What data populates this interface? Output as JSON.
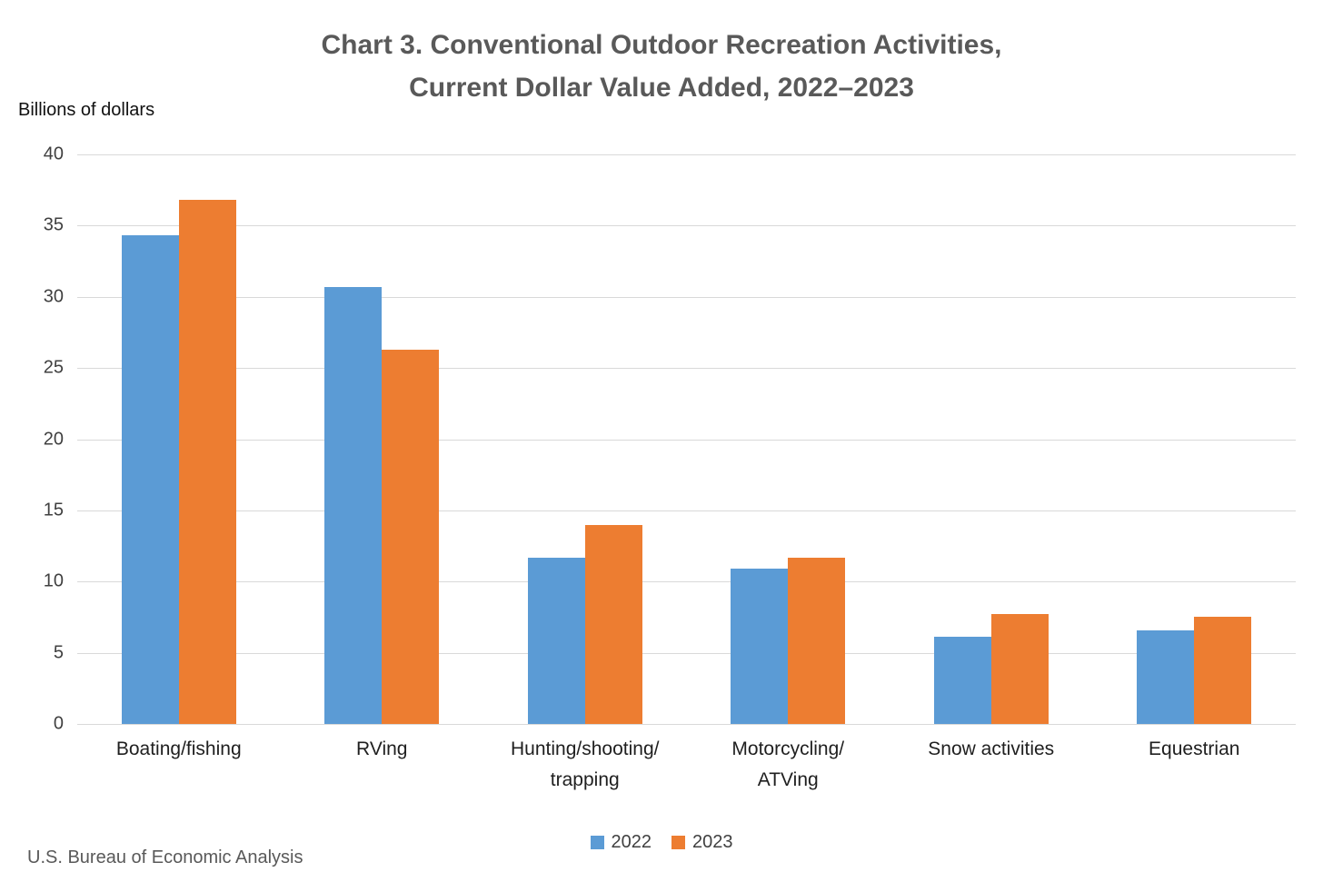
{
  "chart_data": {
    "type": "bar",
    "title_line1": "Chart 3. Conventional Outdoor Recreation Activities,",
    "title_line2": "Current Dollar Value Added, 2022–2023",
    "ylabel": "Billions of dollars",
    "ylim": [
      0,
      40
    ],
    "ytick_step": 5,
    "grid": "horizontal",
    "legend_position": "bottom",
    "categories": [
      "Boating/fishing",
      "RVing",
      "Hunting/shooting/trapping",
      "Motorcycling/ATVing",
      "Snow activities",
      "Equestrian"
    ],
    "category_label_lines": [
      [
        "Boating/fishing"
      ],
      [
        "RVing"
      ],
      [
        "Hunting/shooting/",
        "trapping"
      ],
      [
        "Motorcycling/",
        "ATVing"
      ],
      [
        "Snow activities"
      ],
      [
        "Equestrian"
      ]
    ],
    "series": [
      {
        "name": "2022",
        "color": "#5B9BD5",
        "values": [
          34.3,
          30.7,
          11.7,
          10.9,
          6.1,
          6.6
        ]
      },
      {
        "name": "2023",
        "color": "#ED7D31",
        "values": [
          36.8,
          26.3,
          14.0,
          11.7,
          7.7,
          7.5
        ]
      }
    ],
    "source": "U.S. Bureau of Economic Analysis"
  },
  "colors": {
    "background": "#FFFFFF",
    "gridline": "#D9D9D9",
    "title_text": "#595959",
    "tick_text": "#404040",
    "category_text": "#1F1F1F",
    "legend_text": "#404040",
    "source_text": "#595959"
  }
}
